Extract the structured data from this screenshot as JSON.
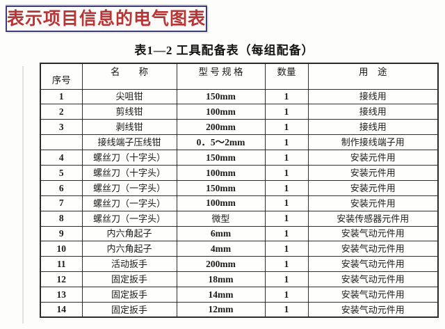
{
  "banner": {
    "text": "表示项目信息的电气图表",
    "text_color": "#b93535",
    "border_color": "#3d3d7d"
  },
  "table": {
    "title": "表1—2 工具配备表（每组配备）",
    "headers": [
      "序号",
      "名　　称",
      "型 号 规 格",
      "数量",
      "用　途"
    ],
    "rows": [
      [
        "1",
        "尖咀钳",
        "150mm",
        "1",
        "接线用"
      ],
      [
        "2",
        "剪线钳",
        "100mm",
        "1",
        "接线用"
      ],
      [
        "3",
        "剥线钳",
        "200mm",
        "1",
        "接线用"
      ],
      [
        "",
        "接线端子压线钳",
        "0．5～2mm",
        "1",
        "制作接线端子用"
      ],
      [
        "4",
        "螺丝刀（十字头）",
        "150mm",
        "1",
        "安装元件用"
      ],
      [
        "5",
        "螺丝刀（十字头）",
        "100mm",
        "1",
        "安装元件用"
      ],
      [
        "6",
        "螺丝刀（一字头）",
        "150mm",
        "1",
        "安装元件用"
      ],
      [
        "7",
        "螺丝刀（一字头）",
        "100mm",
        "1",
        "安装元件用"
      ],
      [
        "8",
        "螺丝刀（一字头）",
        "微型",
        "1",
        "安装传感器元件用"
      ],
      [
        "9",
        "内六角起子",
        "6mm",
        "1",
        "安装气动元件用"
      ],
      [
        "10",
        "内六角起子",
        "4mm",
        "1",
        "安装气动元件用"
      ],
      [
        "11",
        "活动扳手",
        "200mm",
        "1",
        "安装气动元件用"
      ],
      [
        "12",
        "固定扳手",
        "18mm",
        "1",
        "安装气动元件用"
      ],
      [
        "13",
        "固定扳手",
        "14mm",
        "1",
        "安装气动元件用"
      ],
      [
        "14",
        "固定扳手",
        "12mm",
        "1",
        "安装气动元件用"
      ]
    ]
  }
}
